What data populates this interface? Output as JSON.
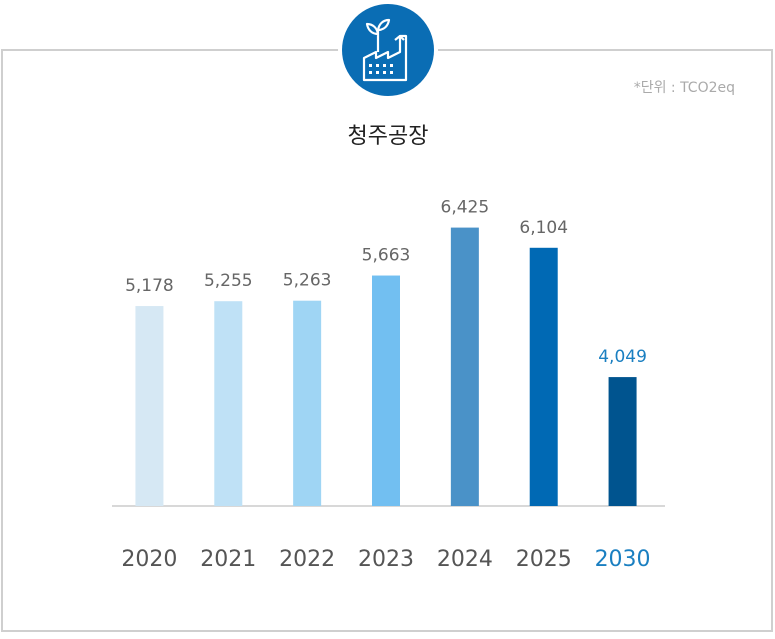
{
  "chart_data": {
    "type": "bar",
    "title": "청주공장",
    "unit": "*단위 : TCO2eq",
    "categories": [
      "2020",
      "2021",
      "2022",
      "2023",
      "2024",
      "2025",
      "2030"
    ],
    "values": [
      5178,
      5255,
      5263,
      5663,
      6425,
      6104,
      4049
    ],
    "value_labels": [
      "5,178",
      "5,255",
      "5,263",
      "5,663",
      "6,425",
      "6,104",
      "4,049"
    ],
    "colors": [
      "#d6e8f4",
      "#bfe1f6",
      "#9fd5f4",
      "#72bff1",
      "#4a92c8",
      "#0069b4",
      "#00548f"
    ],
    "label_colors": [
      "#555555",
      "#555555",
      "#555555",
      "#555555",
      "#555555",
      "#555555",
      "#1a7fc1"
    ],
    "ylim": [
      2000,
      6800
    ]
  }
}
